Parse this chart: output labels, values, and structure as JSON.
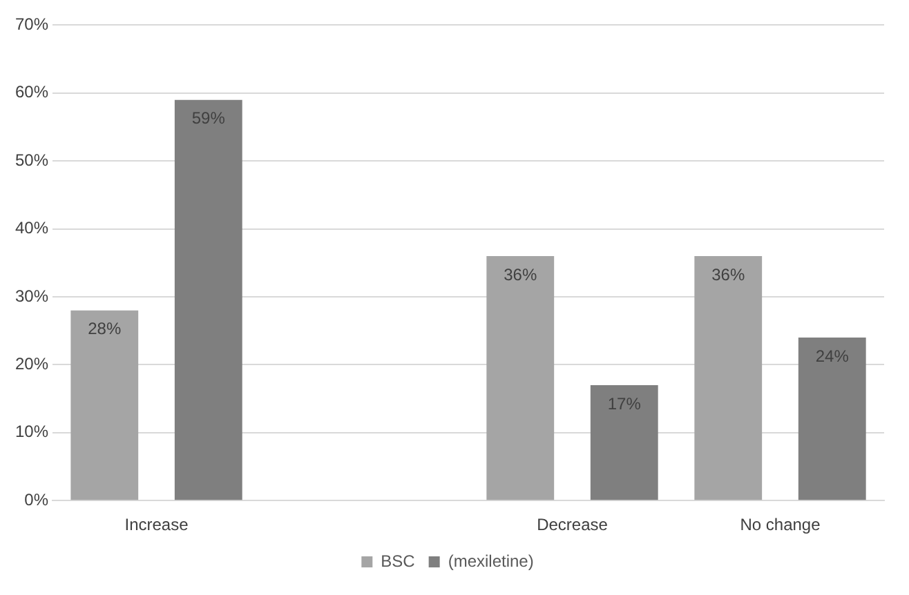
{
  "chart_data": {
    "type": "bar",
    "categories": [
      "Increase",
      null,
      "Decrease",
      "No change"
    ],
    "series": [
      {
        "name": "BSC",
        "color": "#a5a5a5",
        "values": [
          28,
          null,
          36,
          36
        ]
      },
      {
        "name": "(mexiletine)",
        "color": "#7f7f7f",
        "values": [
          59,
          null,
          17,
          24
        ]
      }
    ],
    "ylim": [
      0,
      70
    ],
    "yticks": [
      {
        "value": 0,
        "label": "0%"
      },
      {
        "value": 10,
        "label": "10%"
      },
      {
        "value": 20,
        "label": "20%"
      },
      {
        "value": 30,
        "label": "30%"
      },
      {
        "value": 40,
        "label": "40%"
      },
      {
        "value": 50,
        "label": "50%"
      },
      {
        "value": 60,
        "label": "60%"
      },
      {
        "value": 70,
        "label": "70%"
      }
    ],
    "value_labels": [
      [
        "28%",
        null,
        "36%",
        "36%"
      ],
      [
        "59%",
        null,
        "17%",
        "24%"
      ]
    ],
    "grid": "y",
    "legend": "bottom"
  }
}
